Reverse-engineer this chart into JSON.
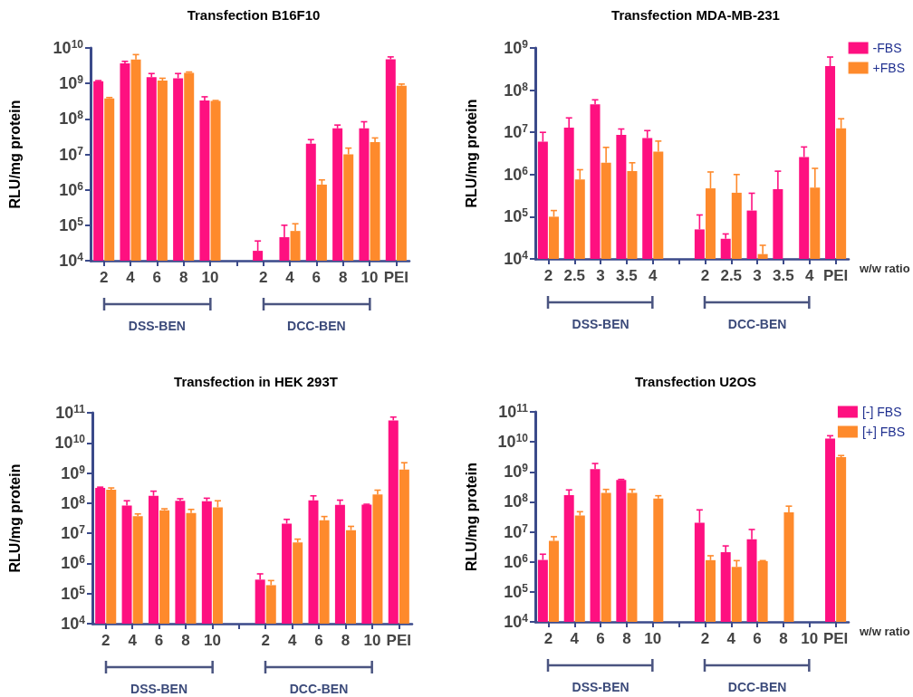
{
  "chart_data": [
    {
      "type": "bar",
      "title": "Transfection B16F10",
      "ylabel": "RLU/mg protein",
      "log": true,
      "legend": false,
      "categories": [
        "2",
        "4",
        "6",
        "8",
        "10",
        null,
        "2",
        "4",
        "6",
        "8",
        "10",
        "PEI"
      ],
      "ylim": [
        10000,
        10000000000
      ],
      "yticks": [
        {
          "value": 10000,
          "label": "10$^{4}$"
        },
        {
          "value": 100000,
          "label": "10$^{5}$"
        },
        {
          "value": 1000000,
          "label": "10$^{6}$"
        },
        {
          "value": 10000000,
          "label": "10$^{7}$"
        },
        {
          "value": 100000000,
          "label": "10$^{8}$"
        },
        {
          "value": 1000000000,
          "label": "10$^{9}$"
        },
        {
          "value": 10000000000,
          "label": "10$^{10}$"
        }
      ],
      "annotations": [
        "DSS-BEN",
        "DCC-BEN"
      ],
      "series": [
        {
          "color": "#fe1080",
          "values": [
            1150000000,
            3700000000,
            1500000000,
            1400000000,
            330000000,
            null,
            19000,
            46000,
            20000000,
            54000000,
            54000000,
            4800000000
          ],
          "errors": [
            [
              1150000000,
              1200000000
            ],
            [
              3700000000,
              4200000000
            ],
            [
              1500000000,
              1900000000
            ],
            [
              1400000000,
              1900000000
            ],
            [
              330000000,
              420000000
            ],
            null,
            [
              19000,
              36000
            ],
            [
              46000,
              100000
            ],
            [
              20000000,
              26000000
            ],
            [
              54000000,
              67000000
            ],
            [
              54000000,
              83000000
            ],
            [
              4800000000,
              5600000000
            ]
          ]
        },
        {
          "color": "#fe8a2c",
          "values": [
            380000000,
            4700000000,
            1200000000,
            2000000000,
            320000000,
            null,
            null,
            69000,
            1400000,
            10000000,
            22000000,
            860000000
          ],
          "errors": [
            [
              380000000,
              400000000
            ],
            [
              4700000000,
              6500000000
            ],
            [
              1200000000,
              1400000000
            ],
            [
              2000000000,
              2100000000
            ],
            [
              320000000,
              330000000
            ],
            null,
            null,
            [
              69000,
              110000
            ],
            [
              1400000,
              1900000
            ],
            [
              10000000,
              15000000
            ],
            [
              22000000,
              29000000
            ],
            [
              860000000,
              960000000
            ]
          ]
        }
      ]
    },
    {
      "type": "bar",
      "title": "Transfection MDA-MB-231",
      "ylabel": "RLU/mg protein",
      "xlabel": "w/w ratio",
      "log": true,
      "legend": "top right",
      "categories": [
        "2",
        "2.5",
        "3",
        "3.5",
        "4",
        null,
        "2",
        "2.5",
        "3",
        "3.5",
        "4",
        "PEI"
      ],
      "ylim": [
        10000,
        1000000000
      ],
      "yticks": [
        {
          "value": 10000,
          "label": "10$^{4}$"
        },
        {
          "value": 100000,
          "label": "10$^{5}$"
        },
        {
          "value": 1000000,
          "label": "10$^{6}$"
        },
        {
          "value": 10000000,
          "label": "10$^{7}$"
        },
        {
          "value": 100000000,
          "label": "10$^{8}$"
        },
        {
          "value": 1000000000,
          "label": "10$^{9}$"
        }
      ],
      "annotations": [
        "DSS-BEN",
        "DCC-BEN"
      ],
      "series": [
        {
          "name": "-FBS",
          "color": "#fe1080",
          "values": [
            6000000,
            13000000,
            46000000,
            8700000,
            7300000,
            null,
            50000,
            30000,
            140000,
            450000,
            2600000,
            370000000
          ],
          "errors": [
            [
              6000000,
              10000000
            ],
            [
              13000000,
              22000000
            ],
            [
              46000000,
              59000000
            ],
            [
              8700000,
              12000000
            ],
            [
              7300000,
              11000000
            ],
            null,
            [
              50000,
              110000
            ],
            [
              30000,
              39000
            ],
            [
              140000,
              360000
            ],
            [
              450000,
              1200000
            ],
            [
              2600000,
              4500000
            ],
            [
              370000000,
              610000000
            ]
          ]
        },
        {
          "name": "+FBS",
          "color": "#fe8a2c",
          "values": [
            100000,
            760000,
            1900000,
            1200000,
            3500000,
            null,
            470000,
            370000,
            13000,
            null,
            490000,
            12400000
          ],
          "errors": [
            [
              100000,
              140000
            ],
            [
              760000,
              1300000
            ],
            [
              1900000,
              4400000
            ],
            [
              1200000,
              1900000
            ],
            [
              3500000,
              6200000
            ],
            null,
            [
              470000,
              1150000
            ],
            [
              370000,
              1000000
            ],
            [
              13000,
              21000
            ],
            null,
            [
              490000,
              1400000
            ],
            [
              12400000,
              21000000
            ]
          ]
        }
      ]
    },
    {
      "type": "bar",
      "title": "Transfection in HEK 293T",
      "ylabel": "RLU/mg protein",
      "log": true,
      "legend": false,
      "categories": [
        "2",
        "4",
        "6",
        "8",
        "10",
        null,
        "2",
        "4",
        "6",
        "8",
        "10",
        "PEI"
      ],
      "ylim": [
        10000,
        100000000000
      ],
      "yticks": [
        {
          "value": 10000,
          "label": "10$^{4}$"
        },
        {
          "value": 100000,
          "label": "10$^{5}$"
        },
        {
          "value": 1000000,
          "label": "10$^{6}$"
        },
        {
          "value": 10000000,
          "label": "10$^{7}$"
        },
        {
          "value": 100000000,
          "label": "10$^{8}$"
        },
        {
          "value": 1000000000,
          "label": "10$^{9}$"
        },
        {
          "value": 10000000000,
          "label": "10$^{10}$"
        },
        {
          "value": 100000000000,
          "label": "10$^{11}$"
        }
      ],
      "annotations": [
        "DSS-BEN",
        "DCC-BEN"
      ],
      "series": [
        {
          "color": "#fe1080",
          "values": [
            320000000,
            84000000,
            175000000,
            120000000,
            116000000,
            null,
            290000,
            21000000,
            124000000,
            88000000,
            90000000,
            56000000000
          ],
          "errors": [
            [
              320000000,
              340000000
            ],
            [
              84000000,
              120000000
            ],
            [
              175000000,
              250000000
            ],
            [
              120000000,
              140000000
            ],
            [
              116000000,
              146000000
            ],
            null,
            [
              290000,
              450000
            ],
            [
              21000000,
              29000000
            ],
            [
              124000000,
              175000000
            ],
            [
              88000000,
              126000000
            ],
            [
              90000000,
              92000000
            ],
            [
              56000000000,
              72000000000
            ]
          ]
        },
        {
          "color": "#fe8a2c",
          "values": [
            280000000,
            37000000,
            58000000,
            47000000,
            73000000,
            null,
            190000,
            5000000,
            27000000,
            12700000,
            195000000,
            1300000000
          ],
          "errors": [
            [
              280000000,
              320000000
            ],
            [
              37000000,
              44000000
            ],
            [
              58000000,
              65000000
            ],
            [
              47000000,
              62000000
            ],
            [
              73000000,
              120000000
            ],
            null,
            [
              190000,
              270000
            ],
            [
              5000000,
              6400000
            ],
            [
              27000000,
              36000000
            ],
            [
              12700000,
              17000000
            ],
            [
              195000000,
              270000000
            ],
            [
              1300000000,
              2200000000
            ]
          ]
        }
      ]
    },
    {
      "type": "bar",
      "title": "Transfection U2OS",
      "ylabel": "RLU/mg protein",
      "xlabel": "w/w ratio",
      "log": true,
      "legend": "top right",
      "categories": [
        "2",
        "4",
        "6",
        "8",
        "10",
        null,
        "2",
        "4",
        "6",
        "8",
        "10",
        "PEI"
      ],
      "ylim": [
        10000,
        100000000000
      ],
      "yticks": [
        {
          "value": 10000,
          "label": "10$^{4}$"
        },
        {
          "value": 100000,
          "label": "10$^{5}$"
        },
        {
          "value": 1000000,
          "label": "10$^{6}$"
        },
        {
          "value": 10000000,
          "label": "10$^{7}$"
        },
        {
          "value": 100000000,
          "label": "10$^{8}$"
        },
        {
          "value": 1000000000,
          "label": "10$^{9}$"
        },
        {
          "value": 10000000000,
          "label": "10$^{10}$"
        },
        {
          "value": 100000000000,
          "label": "10$^{11}$"
        }
      ],
      "annotations": [
        "DSS-BEN",
        "DCC-BEN"
      ],
      "series": [
        {
          "name": "[-] FBS",
          "color": "#fe1080",
          "values": [
            1160000,
            167000000,
            1240000000,
            540000000,
            null,
            null,
            20000000,
            2100000,
            5700000,
            null,
            null,
            12800000000
          ],
          "errors": [
            [
              1160000,
              1800000
            ],
            [
              167000000,
              250000000
            ],
            [
              1240000000,
              1900000000
            ],
            [
              540000000,
              560000000
            ],
            null,
            null,
            [
              20000000,
              54000000
            ],
            [
              2100000,
              3400000
            ],
            [
              5700000,
              12000000
            ],
            null,
            null,
            [
              12800000000,
              16000000000
            ]
          ]
        },
        {
          "name": "[+] FBS",
          "color": "#fe8a2c",
          "values": [
            5000000,
            35000000,
            200000000,
            200000000,
            130000000,
            null,
            1140000,
            680000,
            1060000,
            45000000,
            null,
            3100000000
          ],
          "errors": [
            [
              5000000,
              6900000
            ],
            [
              35000000,
              47000000
            ],
            [
              200000000,
              260000000
            ],
            [
              200000000,
              260000000
            ],
            [
              130000000,
              160000000
            ],
            null,
            [
              1140000,
              1600000
            ],
            [
              680000,
              1100000
            ],
            [
              1060000,
              1100000
            ],
            [
              45000000,
              72000000
            ],
            null,
            [
              3100000000,
              3500000000
            ]
          ]
        }
      ]
    }
  ]
}
